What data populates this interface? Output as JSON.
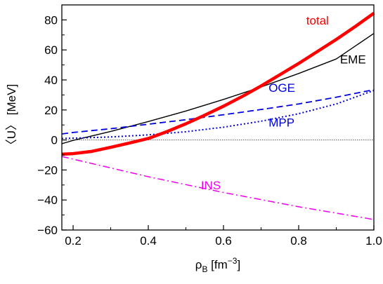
{
  "chart_data": {
    "type": "line",
    "xlabel": {
      "main": "ρ",
      "sub": "B",
      "unit_open": " [fm",
      "unit_sup": "−3",
      "unit_close": "]"
    },
    "ylabel": "〈U〉 [MeV]",
    "xlim": [
      0.17,
      1.0
    ],
    "ylim": [
      -60,
      90
    ],
    "x_ticks": [
      0.2,
      0.4,
      0.6,
      0.8,
      1.0
    ],
    "x_tick_labels": [
      "0.2",
      "0.4",
      "0.6",
      "0.8",
      "1.0"
    ],
    "x_minor_ticks": [
      0.3,
      0.5,
      0.7,
      0.9
    ],
    "y_ticks": [
      -60,
      -40,
      -20,
      0,
      20,
      40,
      60,
      80
    ],
    "y_tick_labels": [
      "−60",
      "−40",
      "−20",
      "0",
      "20",
      "40",
      "60",
      "80"
    ],
    "y_minor_ticks": [
      -50,
      -30,
      -10,
      10,
      30,
      50,
      70
    ],
    "grid": false,
    "zero_line": true,
    "series": [
      {
        "name": "total",
        "color": "#ff0000",
        "style": "solid-thick",
        "x": [
          0.17,
          0.2,
          0.25,
          0.3,
          0.35,
          0.4,
          0.45,
          0.5,
          0.55,
          0.6,
          0.65,
          0.7,
          0.75,
          0.8,
          0.85,
          0.9,
          0.95,
          1.0
        ],
        "y": [
          -9.5,
          -9.1,
          -7.6,
          -4.9,
          -2.0,
          1.0,
          5.6,
          10.8,
          16.5,
          22.5,
          29.0,
          36.0,
          43.5,
          51.0,
          59.0,
          67.0,
          75.5,
          84.5
        ]
      },
      {
        "name": "EME",
        "color": "#000000",
        "style": "solid-thin",
        "x": [
          0.17,
          0.2,
          0.3,
          0.4,
          0.5,
          0.6,
          0.7,
          0.8,
          0.9,
          1.0
        ],
        "y": [
          -2.5,
          -0.3,
          5.7,
          12.3,
          19.3,
          27.0,
          35.3,
          44.3,
          54.0,
          71.0
        ]
      },
      {
        "name": "OGE",
        "color": "#0000dd",
        "style": "dashed",
        "x": [
          0.17,
          0.2,
          0.3,
          0.4,
          0.5,
          0.6,
          0.7,
          0.8,
          0.9,
          1.0
        ],
        "y": [
          4.0,
          5.0,
          7.5,
          10.5,
          13.5,
          16.8,
          20.3,
          24.0,
          28.5,
          33.5
        ]
      },
      {
        "name": "MPP",
        "color": "#0000dd",
        "style": "dotted",
        "x": [
          0.17,
          0.2,
          0.3,
          0.4,
          0.5,
          0.6,
          0.7,
          0.8,
          0.9,
          1.0
        ],
        "y": [
          1.0,
          1.2,
          2.0,
          3.4,
          5.5,
          8.5,
          12.5,
          17.5,
          24.0,
          33.0
        ]
      },
      {
        "name": "INS",
        "color": "#ee00ee",
        "style": "dash-dot",
        "x": [
          0.17,
          0.4,
          0.6,
          0.8,
          1.0
        ],
        "y": [
          -11.0,
          -24.5,
          -35.0,
          -44.5,
          -53.0
        ]
      }
    ],
    "annotations": [
      {
        "text": "total",
        "color": "#ff0000",
        "x": 0.82,
        "y": 77
      },
      {
        "text": "EME",
        "color": "#000000",
        "x": 0.91,
        "y": 51
      },
      {
        "text": "OGE",
        "color": "#0000dd",
        "x": 0.72,
        "y": 32
      },
      {
        "text": "MPP",
        "color": "#0000dd",
        "x": 0.72,
        "y": 9
      },
      {
        "text": "INS",
        "color": "#ee00ee",
        "x": 0.54,
        "y": -33
      }
    ]
  }
}
